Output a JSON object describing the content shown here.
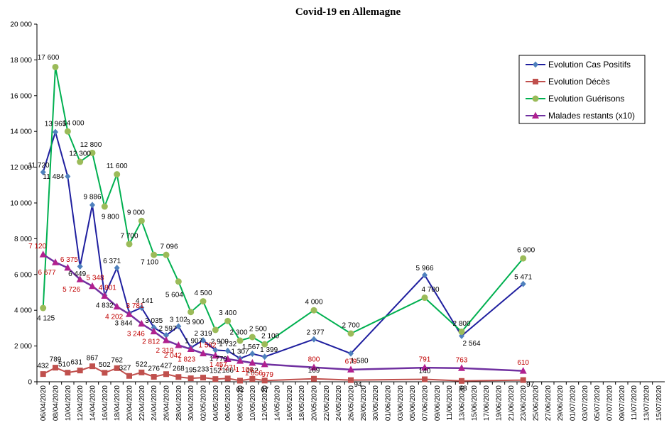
{
  "chart_data": {
    "type": "line",
    "title": "Covid-19 en Allemagne",
    "ylim": [
      0,
      20000
    ],
    "yticks": [
      "0",
      "2 000",
      "4 000",
      "6 000",
      "8 000",
      "10 000",
      "12 000",
      "14 000",
      "16 000",
      "18 000",
      "20 000"
    ],
    "categories": [
      "06/04/2020",
      "08/04/2020",
      "10/04/2020",
      "12/04/2020",
      "14/04/2020",
      "16/04/2020",
      "18/04/2020",
      "20/04/2020",
      "22/04/2020",
      "24/04/2020",
      "26/04/2020",
      "28/04/2020",
      "30/04/2020",
      "02/05/2020",
      "04/05/2020",
      "06/05/2020",
      "08/05/2020",
      "10/05/2020",
      "12/05/2020",
      "14/05/2020",
      "16/05/2020",
      "18/05/2020",
      "20/05/2020",
      "22/05/2020",
      "24/05/2020",
      "26/05/2020",
      "28/05/2020",
      "30/05/2020",
      "01/06/2020",
      "03/06/2020",
      "05/06/2020",
      "07/06/2020",
      "09/06/2020",
      "11/06/2020",
      "13/06/2020",
      "15/06/2020",
      "17/06/2020",
      "19/06/2020",
      "21/06/2020",
      "23/06/2020",
      "25/06/2020",
      "27/06/2020",
      "29/06/2020",
      "01/07/2020",
      "03/07/2020",
      "05/07/2020",
      "07/07/2020",
      "09/07/2020",
      "11/07/2020",
      "13/07/2020",
      "15/07/2020"
    ],
    "grid": false,
    "legend_position": "top-right",
    "series": [
      {
        "name": "Evolution Cas Positifs",
        "color": "#1f1f9f",
        "marker_color": "#4f81bd",
        "marker": "diamond",
        "points": [
          [
            0,
            11720
          ],
          [
            1,
            13965
          ],
          [
            2,
            11484
          ],
          [
            3,
            6449
          ],
          [
            4,
            9886
          ],
          [
            5,
            4832
          ],
          [
            6,
            6371
          ],
          [
            7,
            3844
          ],
          [
            8,
            4141
          ],
          [
            9,
            3035
          ],
          [
            10,
            2597
          ],
          [
            11,
            3102
          ],
          [
            12,
            1907
          ],
          [
            13,
            2319
          ],
          [
            14,
            1770
          ],
          [
            15,
            1732
          ],
          [
            16,
            1307
          ],
          [
            17,
            1567
          ],
          [
            18,
            1399
          ],
          [
            22,
            2377
          ],
          [
            25,
            1580
          ],
          [
            31,
            5966
          ],
          [
            34,
            2564
          ],
          [
            39,
            5471
          ]
        ],
        "labels": [
          "11 720",
          "13 965",
          "11 484",
          "6 449",
          "9 886",
          "4 832",
          "6 371",
          "3 844",
          "4 141",
          "3 035",
          "2 597",
          "3 102",
          "1 907",
          "2 319",
          "1 770",
          "1 732",
          "1 307",
          "1 567",
          "1 399",
          "2 377",
          "1 580",
          "5 966",
          "2 564",
          "5 471"
        ]
      },
      {
        "name": "Evolution Décès",
        "color": "#c0504d",
        "marker_color": "#c0504d",
        "marker": "square",
        "points": [
          [
            0,
            432
          ],
          [
            1,
            789
          ],
          [
            2,
            510
          ],
          [
            3,
            631
          ],
          [
            4,
            867
          ],
          [
            5,
            502
          ],
          [
            6,
            762
          ],
          [
            7,
            327
          ],
          [
            8,
            522
          ],
          [
            9,
            276
          ],
          [
            10,
            427
          ],
          [
            11,
            268
          ],
          [
            12,
            195
          ],
          [
            13,
            233
          ],
          [
            14,
            152
          ],
          [
            15,
            186
          ],
          [
            16,
            62
          ],
          [
            17,
            162
          ],
          [
            18,
            67
          ],
          [
            22,
            169
          ],
          [
            25,
            94
          ],
          [
            31,
            140
          ],
          [
            34,
            48
          ],
          [
            39,
            97
          ]
        ],
        "labels": [
          "432",
          "789",
          "510",
          "631",
          "867",
          "502",
          "762",
          "327",
          "522",
          "276",
          "427",
          "268",
          "195",
          "233",
          "152",
          "186",
          "62",
          "162",
          "67",
          "169",
          "94",
          "140",
          "48",
          "97"
        ]
      },
      {
        "name": "Evolution Guérisons",
        "color": "#00b050",
        "marker_color": "#9bbb59",
        "marker": "circle",
        "points": [
          [
            0,
            4125
          ],
          [
            1,
            17600
          ],
          [
            2,
            14000
          ],
          [
            3,
            12300
          ],
          [
            4,
            12800
          ],
          [
            5,
            9800
          ],
          [
            6,
            11600
          ],
          [
            7,
            7700
          ],
          [
            8,
            9000
          ],
          [
            9,
            7100
          ],
          [
            10,
            7096
          ],
          [
            11,
            5604
          ],
          [
            12,
            3900
          ],
          [
            13,
            4500
          ],
          [
            14,
            2900
          ],
          [
            15,
            3400
          ],
          [
            16,
            2300
          ],
          [
            17,
            2500
          ],
          [
            18,
            2100
          ],
          [
            22,
            4000
          ],
          [
            25,
            2700
          ],
          [
            31,
            4700
          ],
          [
            34,
            2800
          ],
          [
            39,
            6900
          ]
        ],
        "labels": [
          "4 125",
          "17 600",
          "14 000",
          "12 300",
          "12 800",
          "9 800",
          "11 600",
          "7 700",
          "9 000",
          "7 100",
          "7 096",
          "5 604",
          "3 900",
          "4 500",
          "2 900",
          "3 400",
          "2 300",
          "2 500",
          "2 100",
          "4 000",
          "2 700",
          "4 700",
          "2 800",
          "6 900"
        ]
      },
      {
        "name": "Malades restants (x10)",
        "color": "#7030a0",
        "marker_color": "#b0208f",
        "marker": "triangle",
        "points": [
          [
            0,
            7120
          ],
          [
            1,
            6677
          ],
          [
            2,
            6375
          ],
          [
            3,
            5726
          ],
          [
            4,
            5348
          ],
          [
            5,
            4801
          ],
          [
            6,
            4202
          ],
          [
            7,
            3781
          ],
          [
            8,
            3246
          ],
          [
            9,
            2812
          ],
          [
            10,
            2319
          ],
          [
            11,
            2042
          ],
          [
            12,
            1823
          ],
          [
            13,
            1582
          ],
          [
            14,
            1457
          ],
          [
            15,
            1271
          ],
          [
            16,
            1166
          ],
          [
            17,
            1056
          ],
          [
            18,
            979
          ],
          [
            22,
            800
          ],
          [
            25,
            679
          ],
          [
            31,
            791
          ],
          [
            34,
            763
          ],
          [
            39,
            610
          ]
        ],
        "labels": [
          "7 120",
          "6 677",
          "6 375",
          "5 726",
          "5 348",
          "4 801",
          "4 202",
          "3 781",
          "3 246",
          "2 812",
          "2 319",
          "2 042",
          "1 823",
          "1 582",
          "1 457",
          "1 271",
          "1 166",
          "1 056",
          "979",
          "800",
          "679",
          "791",
          "763",
          "610"
        ]
      }
    ]
  }
}
